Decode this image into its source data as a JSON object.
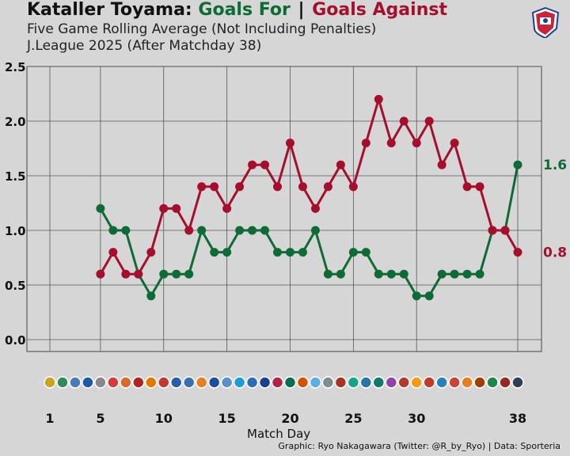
{
  "title": {
    "team": "Kataller Toyama:",
    "for": "Goals For",
    "sep": "|",
    "against": "Goals Against"
  },
  "subtitle1": "Five Game Rolling Average (Not Including Penalties)",
  "subtitle2": "J.League 2025 (After Matchday 38)",
  "credit": "Graphic: Ryo Nakagawara (Twitter: @R_by_Ryo) | Data: Sporteria",
  "colors": {
    "for": "#0e6b35",
    "against": "#a50f2d",
    "background": "#d6d6d6",
    "grid": "#555555"
  },
  "chart_data": {
    "type": "line",
    "xlabel": "Match Day",
    "ylabel": "",
    "xlim": [
      1,
      38
    ],
    "ylim": [
      0,
      2.5
    ],
    "x_ticks": [
      1,
      5,
      10,
      15,
      20,
      25,
      30,
      38
    ],
    "y_ticks": [
      "0.0",
      "0.5",
      "1.0",
      "1.5",
      "2.0",
      "2.5"
    ],
    "grid": true,
    "x": [
      5,
      6,
      7,
      8,
      9,
      10,
      11,
      12,
      13,
      14,
      15,
      16,
      17,
      18,
      19,
      20,
      21,
      22,
      23,
      24,
      25,
      26,
      27,
      28,
      29,
      30,
      31,
      32,
      33,
      34,
      35,
      36,
      37,
      38
    ],
    "series": [
      {
        "name": "Goals For",
        "color": "#0e6b35",
        "end_label": "1.6",
        "values": [
          1.2,
          1.0,
          1.0,
          0.6,
          0.4,
          0.6,
          0.6,
          0.6,
          1.0,
          0.8,
          0.8,
          1.0,
          1.0,
          1.0,
          0.8,
          0.8,
          0.8,
          1.0,
          0.6,
          0.6,
          0.8,
          0.8,
          0.6,
          0.6,
          0.6,
          0.4,
          0.4,
          0.6,
          0.6,
          0.6,
          0.6,
          1.0,
          1.0,
          1.6
        ]
      },
      {
        "name": "Goals Against",
        "color": "#a50f2d",
        "end_label": "0.8",
        "values": [
          0.6,
          0.8,
          0.6,
          0.6,
          0.8,
          1.2,
          1.2,
          1.0,
          1.4,
          1.4,
          1.2,
          1.4,
          1.6,
          1.6,
          1.4,
          1.8,
          1.4,
          1.2,
          1.4,
          1.6,
          1.4,
          1.8,
          2.2,
          1.8,
          2.0,
          1.8,
          2.0,
          1.6,
          1.8,
          1.4,
          1.4,
          1.0,
          1.0,
          0.8
        ]
      }
    ],
    "opponent_icons": [
      "opp-1",
      "opp-2",
      "opp-3",
      "opp-4",
      "opp-5",
      "opp-6",
      "opp-7",
      "opp-8",
      "opp-9",
      "opp-10",
      "opp-11",
      "opp-12",
      "opp-13",
      "opp-14",
      "opp-15",
      "opp-16",
      "opp-17",
      "opp-18",
      "opp-19",
      "opp-20",
      "opp-21",
      "opp-22",
      "opp-23",
      "opp-24",
      "opp-25",
      "opp-26",
      "opp-27",
      "opp-28",
      "opp-29",
      "opp-30",
      "opp-31",
      "opp-32",
      "opp-33",
      "opp-34",
      "opp-35",
      "opp-36",
      "opp-37",
      "opp-38"
    ],
    "icon_colors": [
      "#c9a227",
      "#2e8b57",
      "#4a7ab8",
      "#1f5aa6",
      "#888888",
      "#d83a3a",
      "#d86a2a",
      "#b22222",
      "#e07b00",
      "#c0392b",
      "#2a5caa",
      "#3a6fb0",
      "#e67e22",
      "#1c4f9c",
      "#5b8fc7",
      "#1f9bd1",
      "#2e6db4",
      "#1a3f8f",
      "#b22244",
      "#0b6e4f",
      "#d35400",
      "#5dade2",
      "#7f8c8d",
      "#a93226",
      "#17a589",
      "#2874a6",
      "#117a65",
      "#8e44ad",
      "#b03a2e",
      "#f39c12",
      "#c0392b",
      "#2980b9",
      "#cb4335",
      "#e67e22",
      "#a04000",
      "#1e8449",
      "#922b21",
      "#2e4053"
    ]
  }
}
